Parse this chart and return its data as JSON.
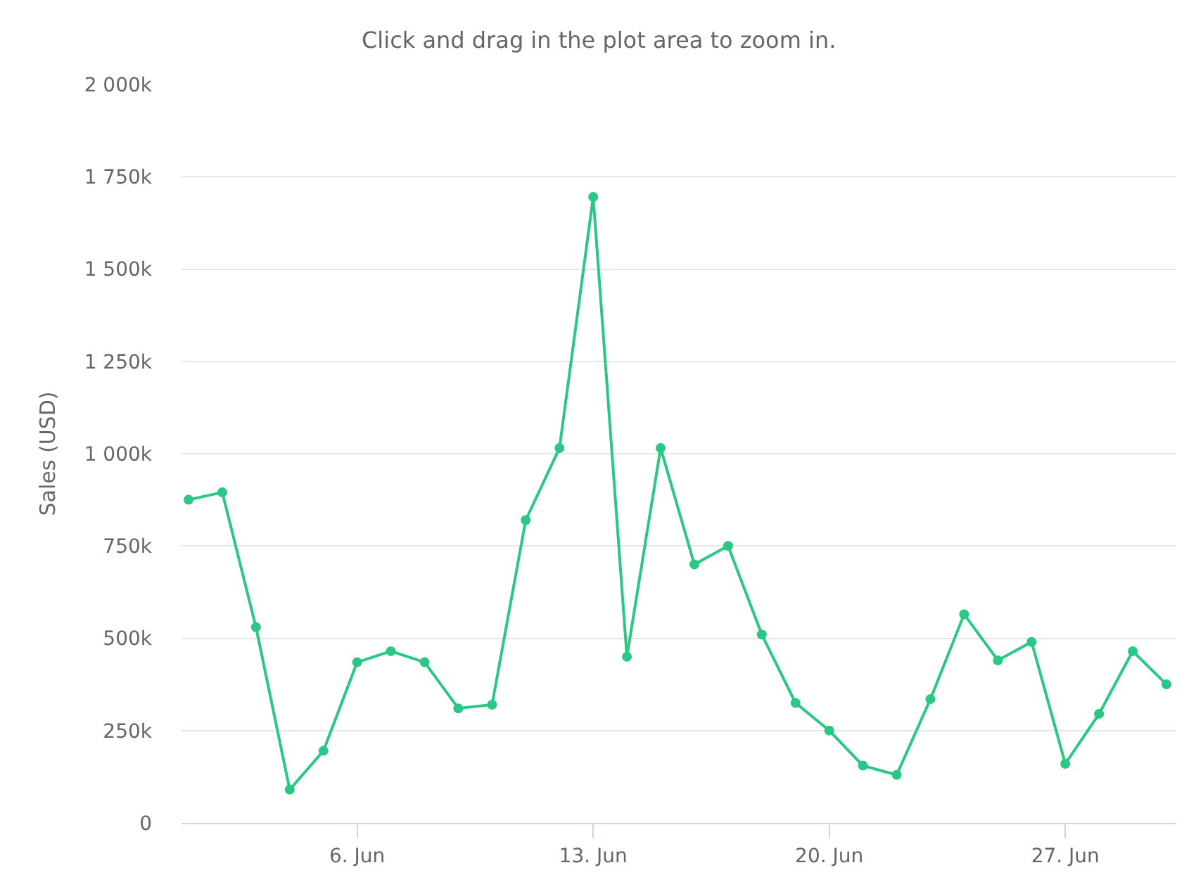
{
  "chart_data": {
    "type": "line",
    "subtitle": "Click and drag in the plot area to zoom in.",
    "ylabel": "Sales (USD)",
    "x": [
      "--06-01",
      "--06-02",
      "--06-03",
      "--06-04",
      "--06-05",
      "--06-06",
      "--06-07",
      "--06-08",
      "--06-09",
      "--06-10",
      "--06-11",
      "--06-12",
      "--06-13",
      "--06-14",
      "--06-15",
      "--06-16",
      "--06-17",
      "--06-18",
      "--06-19",
      "--06-20",
      "--06-21",
      "--06-22",
      "--06-23",
      "--06-24",
      "--06-25",
      "--06-26",
      "--06-27",
      "--06-28",
      "--06-29",
      "--06-30"
    ],
    "series": [
      {
        "color": "#2bc784",
        "values": [
          875000,
          895000,
          530000,
          90000,
          195000,
          435000,
          465000,
          435000,
          310000,
          320000,
          820000,
          1015000,
          1695000,
          450000,
          1015000,
          700000,
          750000,
          510000,
          325000,
          250000,
          155000,
          130000,
          335000,
          565000,
          440000,
          490000,
          160000,
          295000,
          465000,
          375000
        ]
      }
    ],
    "xlim": [
      "--05-31T19:00",
      "--06-30T07:00"
    ],
    "xticks": [
      {
        "value": "--06-06",
        "label": "6. Jun"
      },
      {
        "value": "--06-13",
        "label": "13. Jun"
      },
      {
        "value": "--06-20",
        "label": "20. Jun"
      },
      {
        "value": "--06-27",
        "label": "27. Jun"
      }
    ],
    "ylim": [
      0,
      2000000
    ],
    "yticks": [
      0,
      {
        "value": 250000,
        "label": "250k"
      },
      {
        "value": 500000,
        "label": "500k"
      },
      {
        "value": 750000,
        "label": "750k"
      },
      {
        "value": 1000000,
        "label": "1 000k"
      },
      {
        "value": 1250000,
        "label": "1 250k"
      },
      {
        "value": 1500000,
        "label": "1 500k"
      },
      {
        "value": 1750000,
        "label": "1 750k"
      },
      {
        "value": 2000000,
        "label": "2 000k"
      }
    ],
    "grid": "y",
    "marker": "circle",
    "line_style": "solid"
  }
}
